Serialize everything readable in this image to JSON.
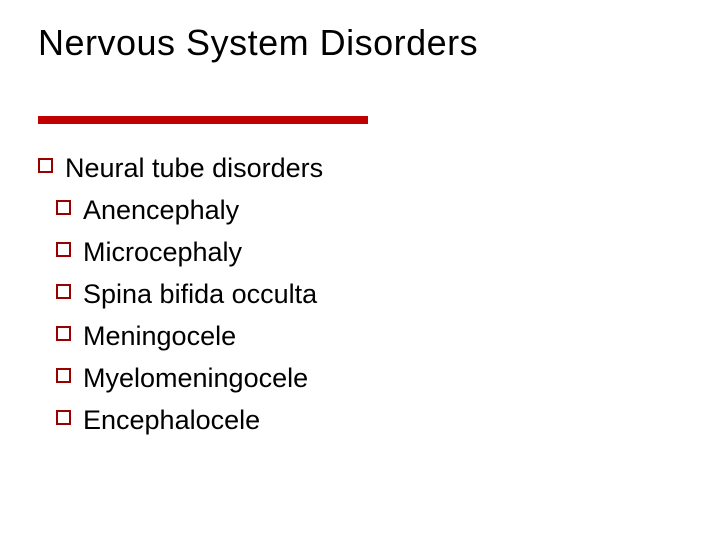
{
  "slide": {
    "title": "Nervous System Disorders",
    "rule_color": "#c00000",
    "box_border_color": "#990000",
    "background_color": "#ffffff",
    "text_color": "#000000",
    "title_fontsize": 36,
    "body_fontsize": 27,
    "items": [
      {
        "label": "Neural tube disorders",
        "indent": 0
      },
      {
        "label": "Anencephaly",
        "indent": 1
      },
      {
        "label": "Microcephaly",
        "indent": 1
      },
      {
        "label": "Spina bifida occulta",
        "indent": 1
      },
      {
        "label": "Meningocele",
        "indent": 1
      },
      {
        "label": "Myelomeningocele",
        "indent": 1
      },
      {
        "label": "Encephalocele",
        "indent": 1
      }
    ]
  }
}
